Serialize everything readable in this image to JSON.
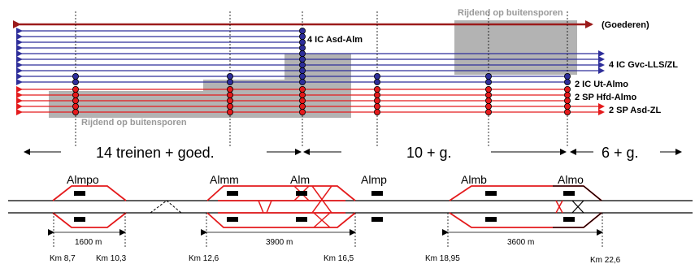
{
  "colors": {
    "blue": "#2e2e9a",
    "red": "#e41a1c",
    "darkred": "#9b1b1b",
    "gray": "#b3b3b3",
    "black": "#000000"
  },
  "labels": {
    "top_shaded": "Rijdend op buitensporen",
    "bottom_shaded": "Rijdend op buitensporen",
    "goederen": "(Goederen)",
    "ic_asd_alm": "4 IC Asd-Alm",
    "ic_gvc": "4 IC Gvc-LLS/ZL",
    "ic_ut": "2 IC Ut-Almo",
    "sp_hfd": "2 SP Hfd-Almo",
    "sp_asd": "2 SP Asd-ZL"
  },
  "segments": {
    "seg1": "14 treinen + goed.",
    "seg2": "10 + g.",
    "seg3": "6 + g."
  },
  "stations": [
    "Almpo",
    "Almm",
    "Alm",
    "Almp",
    "Almb",
    "Almo"
  ],
  "distances": [
    "1600 m",
    "3900 m",
    "3600 m"
  ],
  "kms": [
    "Km 8,7",
    "Km 10,3",
    "Km 12,6",
    "Km 16,5",
    "Km 18,95",
    "Km 22,6"
  ]
}
